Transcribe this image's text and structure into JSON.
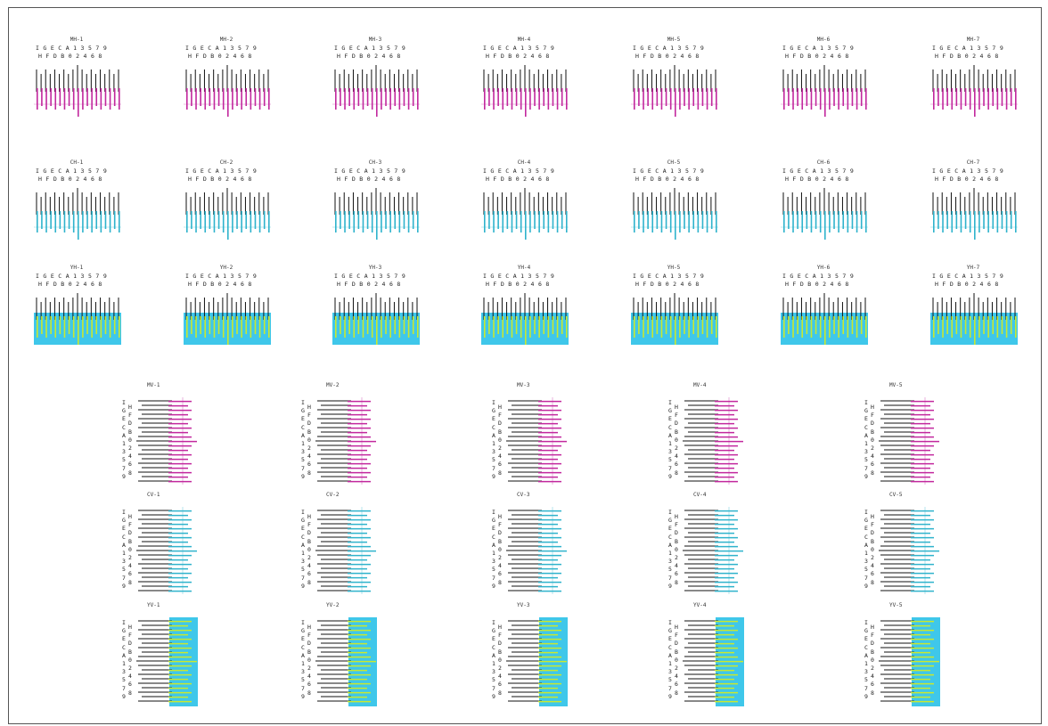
{
  "colors": {
    "magenta": "#c2289e",
    "cyan": "#2fb3cc",
    "yellow_bg": "#3fc7ea",
    "yellow_line": "#c9e830",
    "black": "#111111"
  },
  "scales": {
    "top_row": "I G E C A 1 3 5 7 9",
    "bottom_row": "H F D B 0 2 4 6 8",
    "left_col": [
      "I",
      "G",
      "E",
      "C",
      "A",
      "1",
      "3",
      "5",
      "7",
      "9"
    ],
    "right_col": [
      "H",
      "F",
      "D",
      "B",
      "0",
      "2",
      "4",
      "6",
      "8"
    ]
  },
  "horizontal": [
    {
      "color": "magenta",
      "titles": [
        "MH-1",
        "MH-2",
        "MH-3",
        "MH-4",
        "MH-5",
        "MH-6",
        "MH-7"
      ]
    },
    {
      "color": "cyan",
      "titles": [
        "CH-1",
        "CH-2",
        "CH-3",
        "CH-4",
        "CH-5",
        "CH-6",
        "CH-7"
      ]
    },
    {
      "color": "yellow",
      "titles": [
        "YH-1",
        "YH-2",
        "YH-3",
        "YH-4",
        "YH-5",
        "YH-6",
        "YH-7"
      ]
    }
  ],
  "vertical": [
    {
      "color": "magenta",
      "titles": [
        "MV-1",
        "MV-2",
        "MV-3",
        "MV-4",
        "MV-5"
      ]
    },
    {
      "color": "cyan",
      "titles": [
        "CV-1",
        "CV-2",
        "CV-3",
        "CV-4",
        "CV-5"
      ]
    },
    {
      "color": "yellow",
      "titles": [
        "YV-1",
        "YV-2",
        "YV-3",
        "YV-4",
        "YV-5"
      ]
    }
  ]
}
